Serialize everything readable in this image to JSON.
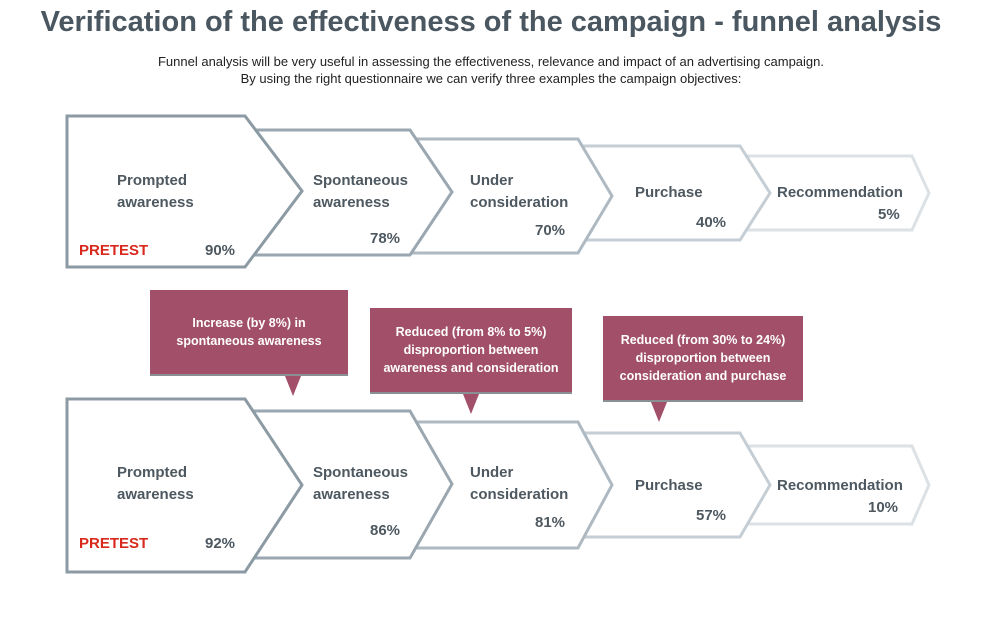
{
  "title": "Verification of the effectiveness of the campaign - funnel analysis",
  "subtitle": {
    "line1": "Funnel analysis will be very useful in assessing the effectiveness, relevance and impact of an advertising campaign.",
    "line2": "By using the right questionnaire we can verify three examples the campaign objectives:"
  },
  "top_funnel": {
    "stages": [
      {
        "label_line1": "Prompted",
        "label_line2": "awareness",
        "value": "90%"
      },
      {
        "label_line1": "Spontaneous",
        "label_line2": "awareness",
        "value": "78%"
      },
      {
        "label_line1": "Under",
        "label_line2": "consideration",
        "value": "70%"
      },
      {
        "label_line1": "Purchase",
        "label_line2": "",
        "value": "40%"
      },
      {
        "label_line1": "Recommendation",
        "label_line2": "",
        "value": "5%"
      }
    ],
    "tag": "PRETEST"
  },
  "callouts": [
    {
      "text": "Increase (by 8%) in spontaneous awareness"
    },
    {
      "text": "Reduced (from 8% to 5%) disproportion between awareness and consideration"
    },
    {
      "text": "Reduced (from 30% to 24%) disproportion between consideration and purchase"
    }
  ],
  "bottom_funnel": {
    "stages": [
      {
        "label_line1": "Prompted",
        "label_line2": "awareness",
        "value": "92%"
      },
      {
        "label_line1": "Spontaneous",
        "label_line2": "awareness",
        "value": "86%"
      },
      {
        "label_line1": "Under",
        "label_line2": "consideration",
        "value": "81%"
      },
      {
        "label_line1": "Purchase",
        "label_line2": "",
        "value": "57%"
      },
      {
        "label_line1": "Recommendation",
        "label_line2": "",
        "value": "10%"
      }
    ],
    "tag": "PRETEST"
  },
  "colors": {
    "title": "#4a5760",
    "callout_bg": "#a2506a",
    "pretest": "#d9281c",
    "stage_borders": [
      "#8c9aa4",
      "#9aa7b0",
      "#aeb9c1",
      "#c5ced4",
      "#dbe1e5"
    ]
  }
}
